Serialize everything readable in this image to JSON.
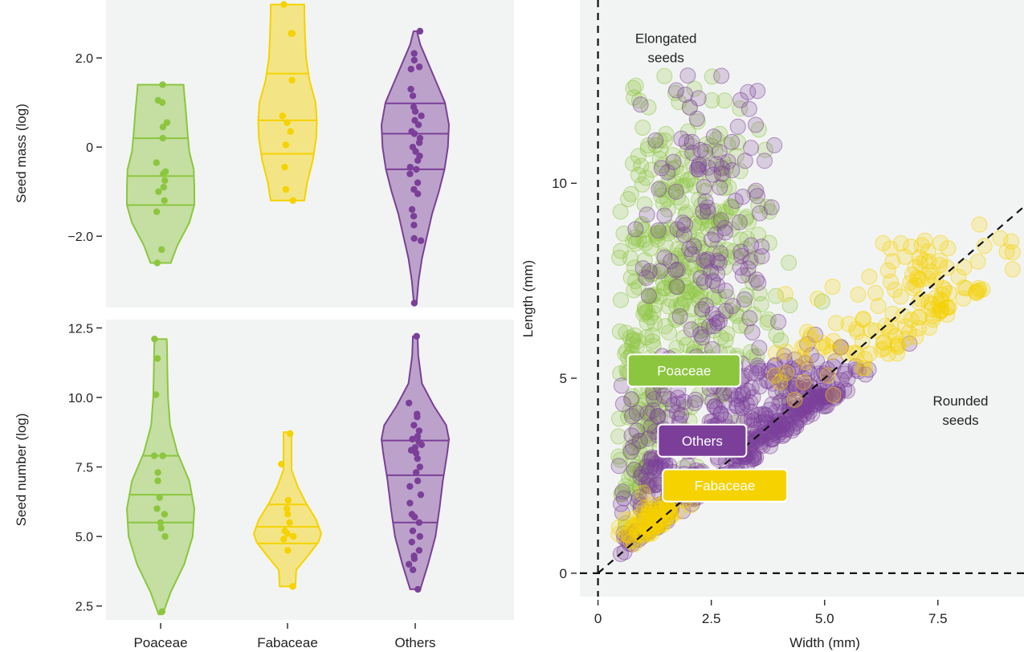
{
  "colors": {
    "Poaceae": "#8CC63F",
    "Fabaceae": "#F5D200",
    "Others": "#7B3F99",
    "panel_bg": "#F2F4F3"
  },
  "chart_data": [
    {
      "id": "seed-mass",
      "type": "violin",
      "ylabel": "Seed mass (log)",
      "xlabel": "",
      "ylim": [
        -3.6,
        3.3
      ],
      "y_ticks": [
        -2.0,
        0,
        2.0
      ],
      "y_tick_labels": [
        "−2.0",
        "0",
        "2.0"
      ],
      "categories": [
        "Poaceae",
        "Fabaceae",
        "Others"
      ],
      "series": [
        {
          "name": "Poaceae",
          "range": [
            -2.6,
            1.4
          ],
          "quartiles": [
            -1.3,
            -0.65,
            0.2
          ],
          "points": [
            1.4,
            1.05,
            1.0,
            0.55,
            0.45,
            0.2,
            -0.35,
            -0.55,
            -0.6,
            -0.75,
            -0.9,
            -1.0,
            -1.2,
            -1.45,
            -2.3,
            -2.6
          ],
          "profile": [
            [
              -2.6,
              0.3
            ],
            [
              -2.2,
              0.5
            ],
            [
              -1.7,
              0.85
            ],
            [
              -1.3,
              1.0
            ],
            [
              -0.9,
              1.0
            ],
            [
              -0.5,
              0.98
            ],
            [
              -0.1,
              0.85
            ],
            [
              0.3,
              0.8
            ],
            [
              0.8,
              0.75
            ],
            [
              1.2,
              0.7
            ],
            [
              1.4,
              0.68
            ]
          ]
        },
        {
          "name": "Fabaceae",
          "range": [
            -1.2,
            3.2
          ],
          "quartiles": [
            -0.15,
            0.6,
            1.65
          ],
          "points": [
            3.2,
            2.55,
            2.55,
            1.5,
            0.7,
            0.55,
            0.35,
            0.05,
            -0.45,
            -0.95,
            -1.2
          ],
          "profile": [
            [
              -1.2,
              0.5
            ],
            [
              -0.8,
              0.58
            ],
            [
              -0.3,
              0.75
            ],
            [
              0.2,
              0.85
            ],
            [
              0.6,
              0.87
            ],
            [
              1.0,
              0.83
            ],
            [
              1.5,
              0.65
            ],
            [
              2.0,
              0.55
            ],
            [
              2.5,
              0.52
            ],
            [
              3.0,
              0.5
            ],
            [
              3.2,
              0.5
            ]
          ]
        },
        {
          "name": "Others",
          "range": [
            -3.5,
            2.6
          ],
          "quartiles": [
            -0.5,
            0.3,
            0.98
          ],
          "points": [
            2.6,
            2.1,
            1.95,
            1.8,
            1.75,
            1.3,
            1.15,
            0.9,
            0.8,
            0.7,
            0.6,
            0.5,
            0.35,
            0.3,
            0.2,
            0.1,
            0.0,
            -0.1,
            -0.2,
            -0.3,
            -0.45,
            -0.5,
            -0.6,
            -0.8,
            -0.95,
            -1.05,
            -1.4,
            -1.55,
            -1.75,
            -2.05,
            -2.1,
            -3.5
          ],
          "profile": [
            [
              -3.5,
              0.04
            ],
            [
              -3.0,
              0.1
            ],
            [
              -2.5,
              0.2
            ],
            [
              -2.0,
              0.35
            ],
            [
              -1.5,
              0.5
            ],
            [
              -1.0,
              0.7
            ],
            [
              -0.5,
              0.87
            ],
            [
              0.0,
              0.97
            ],
            [
              0.5,
              1.0
            ],
            [
              1.0,
              0.88
            ],
            [
              1.5,
              0.6
            ],
            [
              2.0,
              0.32
            ],
            [
              2.3,
              0.15
            ],
            [
              2.6,
              0.05
            ]
          ]
        }
      ]
    },
    {
      "id": "seed-number",
      "type": "violin",
      "ylabel": "Seed number (log)",
      "xlabel": "",
      "ylim": [
        2.0,
        12.8
      ],
      "y_ticks": [
        2.5,
        5.0,
        7.5,
        10.0,
        12.5
      ],
      "y_tick_labels": [
        "2.5",
        "5.0",
        "7.5",
        "10.0",
        "12.5"
      ],
      "categories": [
        "Poaceae",
        "Fabaceae",
        "Others"
      ],
      "series": [
        {
          "name": "Poaceae",
          "range": [
            2.2,
            12.1
          ],
          "quartiles": [
            5.5,
            6.5,
            7.9
          ],
          "points": [
            12.1,
            11.4,
            10.1,
            7.9,
            7.9,
            7.3,
            7.0,
            6.4,
            6.0,
            5.8,
            5.5,
            5.3,
            5.0,
            2.3
          ],
          "profile": [
            [
              2.2,
              0.06
            ],
            [
              3.0,
              0.3
            ],
            [
              4.0,
              0.7
            ],
            [
              5.0,
              0.95
            ],
            [
              6.0,
              1.0
            ],
            [
              7.0,
              0.85
            ],
            [
              8.0,
              0.5
            ],
            [
              9.0,
              0.28
            ],
            [
              10.0,
              0.22
            ],
            [
              11.0,
              0.2
            ],
            [
              11.8,
              0.19
            ],
            [
              12.1,
              0.18
            ]
          ]
        },
        {
          "name": "Fabaceae",
          "range": [
            3.2,
            8.75
          ],
          "quartiles": [
            4.75,
            5.35,
            6.15
          ],
          "points": [
            8.7,
            7.6,
            6.3,
            6.0,
            5.8,
            5.5,
            5.2,
            5.1,
            5.0,
            4.9,
            4.5,
            3.2
          ],
          "profile": [
            [
              3.2,
              0.23
            ],
            [
              3.8,
              0.26
            ],
            [
              4.3,
              0.6
            ],
            [
              4.8,
              0.92
            ],
            [
              5.1,
              1.0
            ],
            [
              5.6,
              0.85
            ],
            [
              6.2,
              0.55
            ],
            [
              6.8,
              0.3
            ],
            [
              7.4,
              0.12
            ],
            [
              8.0,
              0.12
            ],
            [
              8.75,
              0.12
            ]
          ]
        },
        {
          "name": "Others",
          "range": [
            3.1,
            12.2
          ],
          "quartiles": [
            5.5,
            7.2,
            8.45
          ],
          "points": [
            12.2,
            9.8,
            9.4,
            9.3,
            9.0,
            8.8,
            8.6,
            8.5,
            8.4,
            8.3,
            8.2,
            8.1,
            8.0,
            7.8,
            7.5,
            7.3,
            7.0,
            6.8,
            6.5,
            6.2,
            5.8,
            5.7,
            5.5,
            5.2,
            5.0,
            4.8,
            4.5,
            4.3,
            4.2,
            4.0,
            3.8,
            3.1
          ],
          "profile": [
            [
              3.1,
              0.15
            ],
            [
              4.0,
              0.38
            ],
            [
              5.0,
              0.6
            ],
            [
              6.0,
              0.72
            ],
            [
              7.0,
              0.82
            ],
            [
              8.0,
              0.95
            ],
            [
              8.5,
              1.0
            ],
            [
              9.0,
              0.92
            ],
            [
              9.7,
              0.55
            ],
            [
              10.5,
              0.2
            ],
            [
              11.5,
              0.09
            ],
            [
              12.2,
              0.07
            ]
          ]
        }
      ],
      "tick_labels_x": [
        "Poaceae",
        "Fabaceae",
        "Others"
      ]
    },
    {
      "id": "seed-shape",
      "type": "scatter",
      "xlabel": "Width (mm)",
      "ylabel": "Length (mm)",
      "xlim": [
        -0.4,
        9.4
      ],
      "ylim": [
        -0.6,
        14.7
      ],
      "x_ticks": [
        0,
        2.5,
        5.0,
        7.5
      ],
      "x_tick_labels": [
        "0",
        "2.5",
        "5.0",
        "7.5"
      ],
      "y_ticks": [
        0,
        5,
        10
      ],
      "y_tick_labels": [
        "0",
        "5",
        "10"
      ],
      "reference_lines": [
        "x = 0",
        "y = 0",
        "y = x"
      ],
      "annotations": [
        {
          "text": [
            "Elongated",
            "seeds"
          ],
          "x": 1.5,
          "y": 13.6
        },
        {
          "text": [
            "Rounded",
            "seeds"
          ],
          "x": 8.0,
          "y": 4.3
        }
      ],
      "series": [
        {
          "name": "Poaceae",
          "label_position": {
            "x": 1.9,
            "y": 5.2
          },
          "clusters": [
            {
              "cx": 1.6,
              "cy": 7.5,
              "sx": 0.65,
              "sy": 2.3,
              "n": 230
            },
            {
              "cx": 2.3,
              "cy": 9.0,
              "sx": 0.8,
              "sy": 1.6,
              "n": 90
            },
            {
              "cx": 0.9,
              "cy": 3.2,
              "sx": 0.3,
              "sy": 1.3,
              "n": 70
            },
            {
              "cx": 3.2,
              "cy": 7.2,
              "sx": 0.7,
              "sy": 1.4,
              "n": 50
            }
          ]
        },
        {
          "name": "Others",
          "label_position": {
            "x": 2.3,
            "y": 3.4
          },
          "clusters": [
            {
              "cx": 3.4,
              "cy": 3.4,
              "sx": 1.1,
              "sy": 1.3,
              "n": 260
            },
            {
              "cx": 2.4,
              "cy": 8.5,
              "sx": 0.7,
              "sy": 2.4,
              "n": 140
            },
            {
              "cx": 1.2,
              "cy": 2.2,
              "sx": 0.5,
              "sy": 1.4,
              "n": 120
            },
            {
              "cx": 4.6,
              "cy": 4.4,
              "sx": 0.5,
              "sy": 0.7,
              "n": 80
            }
          ]
        },
        {
          "name": "Fabaceae",
          "label_position": {
            "x": 2.8,
            "y": 2.25
          },
          "clusters": [
            {
              "cx": 1.2,
              "cy": 1.1,
              "sx": 0.35,
              "sy": 0.35,
              "n": 90
            },
            {
              "cx": 7.4,
              "cy": 7.3,
              "sx": 0.9,
              "sy": 0.7,
              "n": 85
            },
            {
              "cx": 6.2,
              "cy": 5.7,
              "sx": 0.6,
              "sy": 0.6,
              "n": 35
            },
            {
              "cx": 4.6,
              "cy": 5.8,
              "sx": 0.5,
              "sy": 0.6,
              "n": 25
            }
          ]
        }
      ]
    }
  ]
}
